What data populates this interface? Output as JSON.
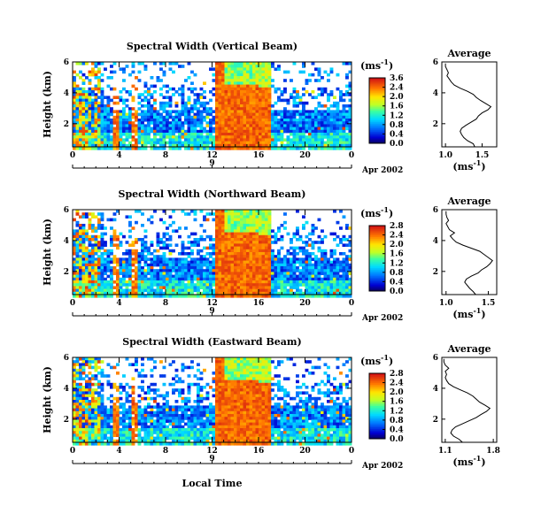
{
  "chart_data": [
    {
      "type": "heatmap",
      "title": "Spectral Width (Vertical Beam)",
      "ylabel": "Height (km)",
      "x_ticks": [
        "0",
        "4",
        "8",
        "12",
        "16",
        "20",
        "0"
      ],
      "xlim": [
        0,
        24
      ],
      "y_ticks": [
        "2",
        "4",
        "6"
      ],
      "ylim": [
        0.5,
        6.0
      ],
      "day_label": "9",
      "date_label": "Apr 2002",
      "colorbar": {
        "unit": "(ms",
        "exponent": "-1",
        "close": ")",
        "ticks": [
          "3.6",
          "2.4",
          "2.0",
          "1.6",
          "1.2",
          "0.8",
          "0.4",
          "0.0"
        ],
        "range": [
          0.0,
          3.6
        ]
      },
      "average": {
        "title": "Average",
        "xlabel": "(ms",
        "xexp": "-1",
        "xclose": ")",
        "x_ticks": [
          "1.0",
          "1.5"
        ],
        "xlim": [
          0.95,
          1.7
        ],
        "y_ticks": [
          "2",
          "4",
          "6"
        ],
        "ylim": [
          0.5,
          6.0
        ],
        "profile": [
          [
            1.4,
            0.5
          ],
          [
            1.38,
            0.7
          ],
          [
            1.3,
            0.9
          ],
          [
            1.25,
            1.1
          ],
          [
            1.22,
            1.3
          ],
          [
            1.2,
            1.5
          ],
          [
            1.22,
            1.7
          ],
          [
            1.28,
            1.9
          ],
          [
            1.35,
            2.1
          ],
          [
            1.42,
            2.3
          ],
          [
            1.45,
            2.5
          ],
          [
            1.5,
            2.7
          ],
          [
            1.58,
            2.9
          ],
          [
            1.62,
            3.1
          ],
          [
            1.55,
            3.3
          ],
          [
            1.48,
            3.5
          ],
          [
            1.42,
            3.7
          ],
          [
            1.38,
            3.9
          ],
          [
            1.3,
            4.1
          ],
          [
            1.2,
            4.3
          ],
          [
            1.12,
            4.5
          ],
          [
            1.08,
            4.7
          ],
          [
            1.05,
            4.9
          ],
          [
            1.02,
            5.1
          ],
          [
            1.04,
            5.3
          ],
          [
            1.02,
            5.5
          ],
          [
            1.0,
            5.7
          ],
          [
            1.0,
            5.9
          ]
        ]
      }
    },
    {
      "type": "heatmap",
      "title": "Spectral Width (Northward Beam)",
      "ylabel": "Height (km)",
      "x_ticks": [
        "0",
        "4",
        "8",
        "12",
        "16",
        "20",
        "0"
      ],
      "xlim": [
        0,
        24
      ],
      "y_ticks": [
        "2",
        "4",
        "6"
      ],
      "ylim": [
        0.5,
        6.0
      ],
      "day_label": "9",
      "date_label": "Apr 2002",
      "colorbar": {
        "unit": "(ms",
        "exponent": "-1",
        "close": ")",
        "ticks": [
          "2.8",
          "2.4",
          "2.0",
          "1.6",
          "1.2",
          "0.8",
          "0.4",
          "0.0"
        ],
        "range": [
          0.0,
          2.8
        ]
      },
      "average": {
        "title": "Average",
        "xlabel": "(ms",
        "xexp": "-1",
        "xclose": ")",
        "x_ticks": [
          "1.0",
          "1.5"
        ],
        "xlim": [
          0.95,
          1.6
        ],
        "y_ticks": [
          "2",
          "4",
          "6"
        ],
        "ylim": [
          0.5,
          6.0
        ],
        "profile": [
          [
            1.35,
            0.5
          ],
          [
            1.32,
            0.7
          ],
          [
            1.28,
            0.9
          ],
          [
            1.25,
            1.1
          ],
          [
            1.22,
            1.3
          ],
          [
            1.24,
            1.5
          ],
          [
            1.3,
            1.7
          ],
          [
            1.38,
            1.9
          ],
          [
            1.42,
            2.1
          ],
          [
            1.48,
            2.3
          ],
          [
            1.52,
            2.5
          ],
          [
            1.55,
            2.7
          ],
          [
            1.5,
            2.9
          ],
          [
            1.45,
            3.1
          ],
          [
            1.4,
            3.3
          ],
          [
            1.3,
            3.5
          ],
          [
            1.2,
            3.7
          ],
          [
            1.12,
            3.9
          ],
          [
            1.08,
            4.1
          ],
          [
            1.05,
            4.3
          ],
          [
            1.1,
            4.5
          ],
          [
            1.04,
            4.7
          ],
          [
            1.02,
            4.9
          ],
          [
            1.0,
            5.1
          ],
          [
            1.03,
            5.3
          ],
          [
            1.01,
            5.5
          ],
          [
            1.0,
            5.7
          ],
          [
            1.0,
            5.9
          ]
        ]
      }
    },
    {
      "type": "heatmap",
      "title": "Spectral Width (Eastward Beam)",
      "ylabel": "Height (km)",
      "xlabel": "Local Time",
      "x_ticks": [
        "0",
        "4",
        "8",
        "12",
        "16",
        "20",
        "0"
      ],
      "xlim": [
        0,
        24
      ],
      "y_ticks": [
        "2",
        "4",
        "6"
      ],
      "ylim": [
        0.5,
        6.0
      ],
      "day_label": "9",
      "date_label": "Apr 2002",
      "colorbar": {
        "unit": "(ms",
        "exponent": "-1",
        "close": ")",
        "ticks": [
          "2.8",
          "2.4",
          "2.0",
          "1.6",
          "1.2",
          "0.8",
          "0.4",
          "0.0"
        ],
        "range": [
          0.0,
          2.8
        ]
      },
      "average": {
        "title": "Average",
        "xlabel": "(ms",
        "xexp": "-1",
        "xclose": ")",
        "x_ticks": [
          "1.1",
          "1.8"
        ],
        "xlim": [
          1.05,
          1.85
        ],
        "y_ticks": [
          "2",
          "4",
          "6"
        ],
        "ylim": [
          0.5,
          6.0
        ],
        "profile": [
          [
            1.35,
            0.5
          ],
          [
            1.3,
            0.7
          ],
          [
            1.22,
            0.9
          ],
          [
            1.18,
            1.1
          ],
          [
            1.2,
            1.3
          ],
          [
            1.25,
            1.5
          ],
          [
            1.35,
            1.7
          ],
          [
            1.45,
            1.9
          ],
          [
            1.55,
            2.1
          ],
          [
            1.62,
            2.3
          ],
          [
            1.7,
            2.5
          ],
          [
            1.75,
            2.7
          ],
          [
            1.68,
            2.9
          ],
          [
            1.6,
            3.1
          ],
          [
            1.55,
            3.3
          ],
          [
            1.5,
            3.5
          ],
          [
            1.42,
            3.7
          ],
          [
            1.32,
            3.9
          ],
          [
            1.22,
            4.1
          ],
          [
            1.15,
            4.3
          ],
          [
            1.12,
            4.5
          ],
          [
            1.1,
            4.7
          ],
          [
            1.12,
            4.9
          ],
          [
            1.1,
            5.1
          ],
          [
            1.15,
            5.3
          ],
          [
            1.1,
            5.5
          ],
          [
            1.08,
            5.7
          ],
          [
            1.08,
            5.9
          ]
        ]
      }
    }
  ]
}
